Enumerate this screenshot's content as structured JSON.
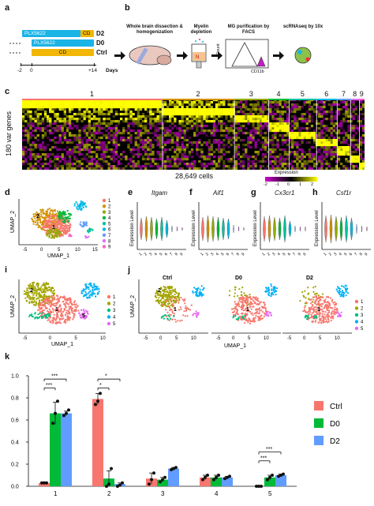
{
  "panel_a": {
    "label": "a",
    "rows": [
      {
        "drug": "PLX5622",
        "cd": "CD",
        "group": "D2"
      },
      {
        "drug": "PLX5622",
        "cd": "",
        "group": "D0"
      },
      {
        "drug": "",
        "cd": "CD",
        "group": "Ctrl"
      }
    ],
    "ticks": [
      "-2",
      "0",
      "+14"
    ],
    "axis_label": "Days"
  },
  "panel_b": {
    "label": "b",
    "steps": [
      "Whole brain dissection & homogenization",
      "Myelin depletion",
      "MG purification by FACS",
      "scRNAseq by 10x"
    ],
    "facs_y": "Count",
    "facs_x": "CD11b"
  },
  "panel_c": {
    "label": "c",
    "cluster_labels": [
      "1",
      "2",
      "3",
      "4",
      "5",
      "6",
      "7",
      "8",
      "9"
    ],
    "ylabel": "180 var genes",
    "xlabel": "28,649 cells",
    "legend_title": "Expression",
    "legend_ticks": [
      "-2",
      "-1",
      "0",
      "1",
      "2"
    ],
    "colors": {
      "low": "#d000d0",
      "mid": "#000000",
      "high": "#ffff00"
    }
  },
  "panel_d": {
    "label": "d",
    "ylabel": "UMAP_2",
    "xlabel": "UMAP_1",
    "x_ticks": [
      "-5",
      "0",
      "5",
      "10",
      "15"
    ],
    "legend": [
      "1",
      "2",
      "3",
      "4",
      "5",
      "6",
      "7",
      "8",
      "9"
    ],
    "colors": [
      "#f8766d",
      "#d39200",
      "#93aa00",
      "#00ba38",
      "#00c19f",
      "#00b9e3",
      "#619cff",
      "#db72fb",
      "#ff61c3"
    ],
    "cluster_tags": [
      "1",
      "2"
    ]
  },
  "violins": [
    {
      "label": "e",
      "gene": "Itgam"
    },
    {
      "label": "f",
      "gene": "Aif1"
    },
    {
      "label": "g",
      "gene": "Cx3cr1"
    },
    {
      "label": "h",
      "gene": "Csf1r"
    }
  ],
  "violin_ylabel": "Expression Level",
  "violin_ticks": [
    "1",
    "2",
    "3",
    "4",
    "5",
    "6",
    "7",
    "8",
    "9"
  ],
  "panel_i": {
    "label": "i",
    "ylabel": "UMAP_2",
    "xlabel": "UMAP_1",
    "x_ticks": [
      "-5",
      "0",
      "5",
      "10"
    ],
    "legend": [
      "1",
      "2",
      "3",
      "4",
      "5"
    ],
    "colors": [
      "#f8766d",
      "#a3a500",
      "#00bf7d",
      "#00b0f6",
      "#e76bf3"
    ],
    "cluster_tags": [
      "1",
      "2",
      "5"
    ]
  },
  "panel_j": {
    "label": "j",
    "titles": [
      "Ctrl",
      "D0",
      "D2"
    ],
    "ylabel": "UMAP_2",
    "xlabel": "UMAP_1",
    "x_ticks": [
      "-5",
      "0",
      "5",
      "10"
    ],
    "legend": [
      "1",
      "2",
      "3",
      "4",
      "5"
    ],
    "cluster_tags": [
      "1",
      "2"
    ]
  },
  "chart_data": {
    "type": "bar",
    "panel_label": "k",
    "categories": [
      "1",
      "2",
      "3",
      "4",
      "5"
    ],
    "series": [
      {
        "name": "Ctrl",
        "color": "#f8766d",
        "values": [
          0.03,
          0.79,
          0.07,
          0.08,
          0.0
        ],
        "errors": [
          0.0,
          0.05,
          0.05,
          0.02,
          0.0
        ],
        "points": [
          [
            0.03,
            0.03,
            0.03
          ],
          [
            0.74,
            0.77,
            0.84
          ],
          [
            0.02,
            0.06,
            0.12
          ],
          [
            0.06,
            0.08,
            0.1
          ],
          [
            0.0,
            0.0,
            0.0
          ]
        ]
      },
      {
        "name": "D0",
        "color": "#00ba38",
        "values": [
          0.66,
          0.07,
          0.06,
          0.08,
          0.08
        ],
        "errors": [
          0.1,
          0.07,
          0.02,
          0.02,
          0.02
        ],
        "points": [
          [
            0.57,
            0.66,
            0.77
          ],
          [
            0.0,
            0.02,
            0.16
          ],
          [
            0.04,
            0.06,
            0.08
          ],
          [
            0.06,
            0.08,
            0.1
          ],
          [
            0.06,
            0.08,
            0.1
          ]
        ]
      },
      {
        "name": "D2",
        "color": "#619cff",
        "values": [
          0.66,
          0.02,
          0.16,
          0.08,
          0.1
        ],
        "errors": [
          0.02,
          0.01,
          0.01,
          0.01,
          0.01
        ],
        "points": [
          [
            0.64,
            0.66,
            0.69
          ],
          [
            0.0,
            0.01,
            0.03
          ],
          [
            0.15,
            0.16,
            0.17
          ],
          [
            0.07,
            0.08,
            0.09
          ],
          [
            0.09,
            0.1,
            0.11
          ]
        ]
      }
    ],
    "ylim": [
      0,
      1.0
    ],
    "y_ticks": [
      0,
      0.2,
      0.4,
      0.6,
      0.8,
      1.0
    ],
    "significance": [
      {
        "group": 0,
        "from": 0,
        "to": 1,
        "label": "***",
        "level": 0.89
      },
      {
        "group": 0,
        "from": 0,
        "to": 2,
        "label": "***",
        "level": 0.97
      },
      {
        "group": 1,
        "from": 0,
        "to": 1,
        "label": "*",
        "level": 0.89
      },
      {
        "group": 1,
        "from": 0,
        "to": 2,
        "label": "*",
        "level": 0.97
      },
      {
        "group": 4,
        "from": 0,
        "to": 1,
        "label": "***",
        "level": 0.23
      },
      {
        "group": 4,
        "from": 0,
        "to": 2,
        "label": "***",
        "level": 0.31
      }
    ],
    "legend_position": "right",
    "xlabel": "",
    "ylabel": ""
  }
}
